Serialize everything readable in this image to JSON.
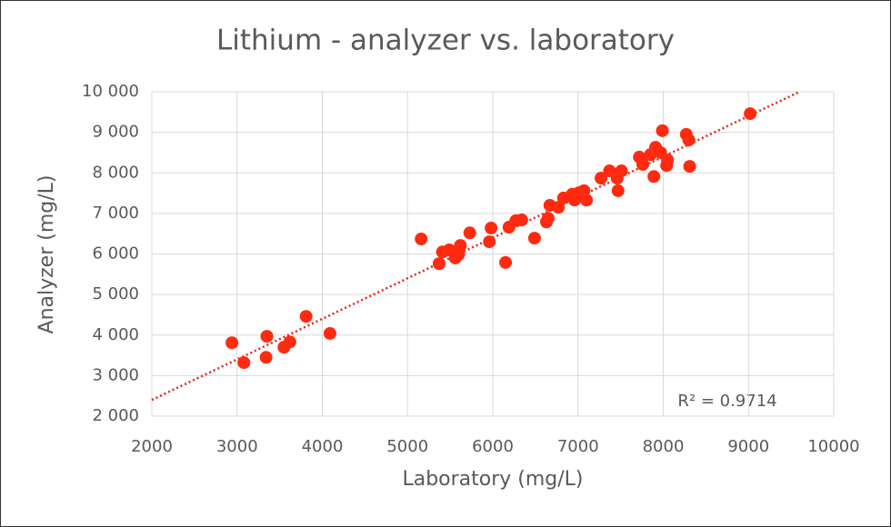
{
  "chart_data": {
    "type": "scatter",
    "title": "Lithium - analyzer vs. laboratory",
    "x_label": "Laboratory (mg/L)",
    "y_label": "Analyzer (mg/L)",
    "annotation": "R² = 0.9714",
    "color": "#ff2a0f",
    "trendline_color": "#e8231a",
    "grid": true,
    "x": [
      3080,
      2940,
      3350,
      3340,
      3550,
      3620,
      3810,
      4090,
      5160,
      5370,
      5410,
      5490,
      5560,
      5620,
      5600,
      5730,
      5960,
      5980,
      6150,
      6190,
      6270,
      6340,
      6490,
      6630,
      6650,
      6670,
      6770,
      6830,
      6930,
      6960,
      7010,
      7070,
      7100,
      7270,
      7370,
      7460,
      7510,
      7470,
      7720,
      7760,
      7850,
      7910,
      7970,
      7990,
      7890,
      8040,
      8050,
      8270,
      8300,
      8310,
      9020
    ],
    "values": [
      3320,
      3810,
      3970,
      3450,
      3700,
      3830,
      4460,
      4040,
      6370,
      5760,
      6050,
      6100,
      5900,
      6210,
      5990,
      6520,
      6300,
      6640,
      5790,
      6660,
      6820,
      6840,
      6390,
      6790,
      6880,
      7200,
      7150,
      7380,
      7470,
      7330,
      7510,
      7560,
      7330,
      7870,
      8050,
      7870,
      8050,
      7560,
      8390,
      8210,
      8450,
      8630,
      8500,
      9040,
      7910,
      8180,
      8320,
      8950,
      8810,
      8160,
      9460
    ],
    "trendline": {
      "x": [
        2000,
        9600
      ],
      "y": [
        2400,
        10000
      ]
    },
    "xlim": [
      2000,
      10000
    ],
    "xticks": [
      2000,
      3000,
      4000,
      5000,
      6000,
      7000,
      8000,
      9000,
      10000
    ],
    "ylim": [
      2000,
      10000
    ],
    "yticks": [
      {
        "value": 2000,
        "label": "2 000"
      },
      {
        "value": 3000,
        "label": "3 000"
      },
      {
        "value": 4000,
        "label": "4 000"
      },
      {
        "value": 5000,
        "label": "5 000"
      },
      {
        "value": 6000,
        "label": "6 000"
      },
      {
        "value": 7000,
        "label": "7 000"
      },
      {
        "value": 8000,
        "label": "8 000"
      },
      {
        "value": 9000,
        "label": "9 000"
      },
      {
        "value": 10000,
        "label": "10 000"
      }
    ]
  }
}
